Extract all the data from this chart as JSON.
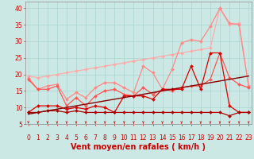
{
  "xlabel": "Vent moyen/en rafales ( km/h )",
  "bg_color": "#cce8e4",
  "grid_color": "#aad4d0",
  "xlim": [
    -0.3,
    23.3
  ],
  "ylim": [
    5,
    42
  ],
  "yticks": [
    5,
    10,
    15,
    20,
    25,
    30,
    35,
    40
  ],
  "xticks": [
    0,
    1,
    2,
    3,
    4,
    5,
    6,
    7,
    8,
    9,
    10,
    11,
    12,
    13,
    14,
    15,
    16,
    17,
    18,
    19,
    20,
    21,
    22,
    23
  ],
  "series": [
    {
      "color": "#ffaaaa",
      "linewidth": 0.9,
      "marker": "D",
      "markersize": 2.0,
      "values": [
        19.5,
        19.0,
        19.5,
        20.0,
        20.5,
        21.0,
        21.5,
        22.0,
        22.5,
        23.0,
        23.5,
        24.0,
        24.5,
        25.0,
        25.5,
        26.0,
        26.5,
        27.0,
        27.5,
        28.0,
        40.0,
        35.0,
        35.5,
        16.5
      ]
    },
    {
      "color": "#ff8888",
      "linewidth": 0.9,
      "marker": "D",
      "markersize": 2.0,
      "values": [
        19.0,
        15.5,
        16.5,
        17.0,
        12.5,
        14.5,
        13.0,
        16.0,
        17.5,
        17.5,
        16.0,
        14.5,
        22.5,
        20.5,
        15.5,
        21.5,
        29.5,
        30.5,
        30.0,
        34.5,
        40.0,
        35.5,
        35.0,
        16.5
      ]
    },
    {
      "color": "#ff5555",
      "linewidth": 0.9,
      "marker": "D",
      "markersize": 2.0,
      "values": [
        18.5,
        15.5,
        15.5,
        16.5,
        10.5,
        13.0,
        10.5,
        13.5,
        15.0,
        15.5,
        14.0,
        13.5,
        16.0,
        14.0,
        15.5,
        15.0,
        16.0,
        16.5,
        16.5,
        18.5,
        26.5,
        19.0,
        17.0,
        16.0
      ]
    },
    {
      "color": "#dd0000",
      "linewidth": 0.9,
      "marker": "D",
      "markersize": 2.0,
      "values": [
        8.5,
        10.5,
        10.5,
        10.5,
        9.5,
        10.0,
        9.5,
        10.5,
        10.0,
        8.5,
        13.5,
        13.5,
        13.5,
        12.5,
        15.5,
        15.5,
        15.5,
        22.5,
        15.5,
        26.5,
        26.5,
        10.5,
        8.5,
        8.5
      ]
    },
    {
      "color": "#aa0000",
      "linewidth": 0.9,
      "marker": "D",
      "markersize": 2.0,
      "values": [
        8.5,
        8.5,
        9.0,
        9.0,
        8.5,
        9.0,
        8.5,
        8.5,
        8.5,
        8.5,
        8.5,
        8.5,
        8.5,
        8.5,
        8.5,
        8.5,
        8.5,
        8.5,
        8.5,
        8.5,
        8.5,
        7.5,
        8.5,
        8.5
      ]
    },
    {
      "color": "#880000",
      "linewidth": 1.0,
      "marker": "None",
      "markersize": 0,
      "values": [
        8.0,
        8.5,
        9.0,
        9.5,
        10.0,
        10.5,
        11.0,
        11.5,
        12.0,
        12.5,
        13.0,
        13.5,
        14.0,
        14.5,
        15.0,
        15.5,
        16.0,
        16.5,
        17.0,
        17.5,
        18.0,
        18.5,
        19.0,
        19.5
      ]
    }
  ],
  "arrow_color": "#cc0000",
  "xlabel_color": "#cc0000",
  "xlabel_fontsize": 7,
  "tick_color": "#cc0000",
  "tick_fontsize": 5.5,
  "spine_color": "#999999"
}
